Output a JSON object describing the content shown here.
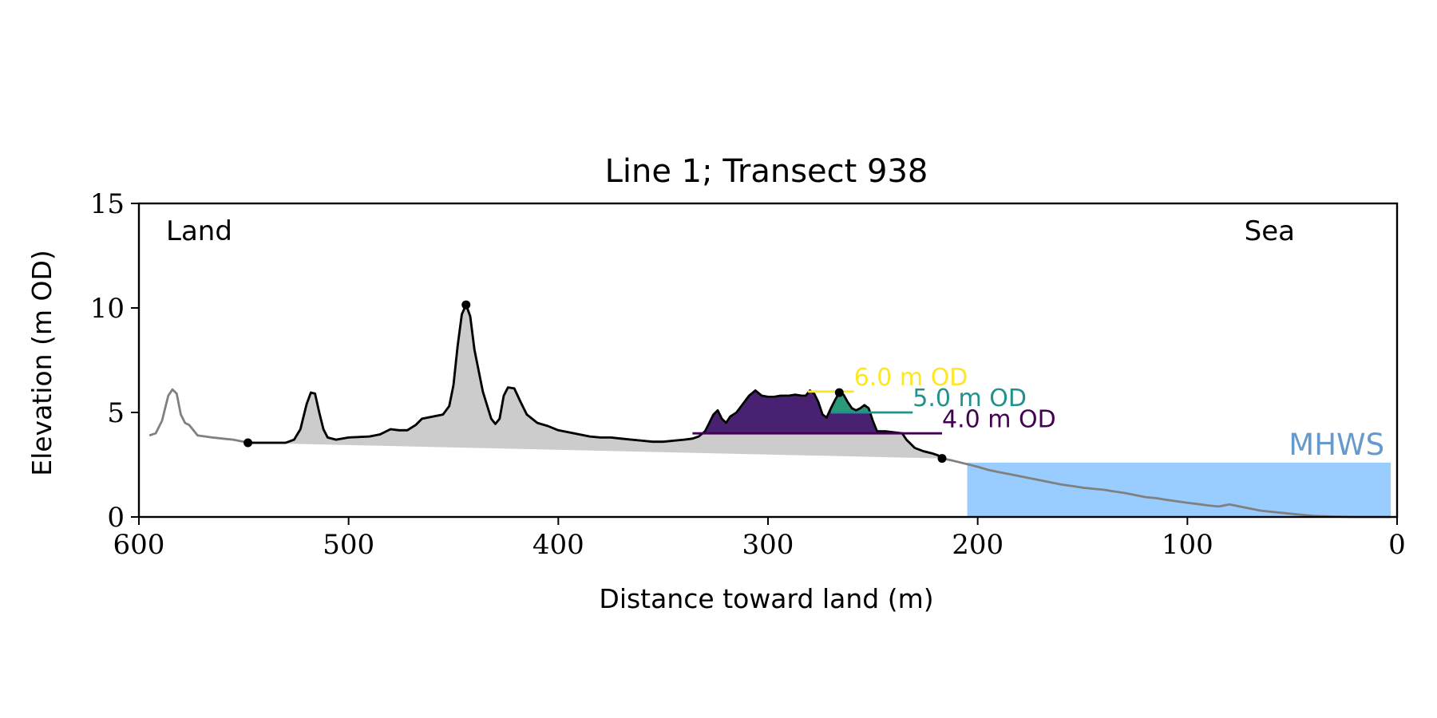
{
  "chart_data": {
    "type": "area",
    "title": "Line 1; Transect 938",
    "xlabel": "Distance toward land (m)",
    "ylabel": "Elevation (m OD)",
    "xlim": [
      600,
      0
    ],
    "ylim": [
      0,
      15
    ],
    "x_ticks": [
      600,
      500,
      400,
      300,
      200,
      100,
      0
    ],
    "y_ticks": [
      0,
      5,
      10,
      15
    ],
    "corner_labels": {
      "land": "Land",
      "sea": "Sea"
    },
    "grid": false,
    "mhws": {
      "label": "MHWS",
      "elevation": 2.6,
      "x_from": 205,
      "x_to": 3,
      "color": "#99ccff",
      "label_color": "#6699cc"
    },
    "profile_full": {
      "color": "#808080",
      "points": [
        [
          595,
          3.9
        ],
        [
          592,
          4.0
        ],
        [
          589,
          4.6
        ],
        [
          586,
          5.8
        ],
        [
          584,
          6.1
        ],
        [
          582,
          5.9
        ],
        [
          580,
          4.9
        ],
        [
          578,
          4.5
        ],
        [
          576,
          4.4
        ],
        [
          572,
          3.9
        ],
        [
          565,
          3.8
        ],
        [
          560,
          3.75
        ],
        [
          555,
          3.7
        ],
        [
          550,
          3.6
        ],
        [
          548,
          3.55
        ],
        [
          540,
          3.55
        ],
        [
          530,
          3.55
        ],
        [
          526,
          3.7
        ],
        [
          523,
          4.2
        ],
        [
          520,
          5.4
        ],
        [
          518,
          5.95
        ],
        [
          516,
          5.9
        ],
        [
          514,
          5.0
        ],
        [
          512,
          4.2
        ],
        [
          510,
          3.8
        ],
        [
          506,
          3.7
        ],
        [
          500,
          3.8
        ],
        [
          490,
          3.85
        ],
        [
          485,
          3.95
        ],
        [
          480,
          4.2
        ],
        [
          476,
          4.15
        ],
        [
          472,
          4.15
        ],
        [
          468,
          4.4
        ],
        [
          465,
          4.7
        ],
        [
          460,
          4.8
        ],
        [
          455,
          4.9
        ],
        [
          452,
          5.3
        ],
        [
          450,
          6.3
        ],
        [
          448,
          8.2
        ],
        [
          446,
          9.7
        ],
        [
          444,
          10.15
        ],
        [
          442,
          9.6
        ],
        [
          440,
          8.0
        ],
        [
          436,
          6.0
        ],
        [
          432,
          4.7
        ],
        [
          430,
          4.45
        ],
        [
          428,
          4.7
        ],
        [
          426,
          5.8
        ],
        [
          424,
          6.2
        ],
        [
          421,
          6.15
        ],
        [
          418,
          5.5
        ],
        [
          415,
          4.9
        ],
        [
          410,
          4.5
        ],
        [
          405,
          4.35
        ],
        [
          400,
          4.15
        ],
        [
          395,
          4.05
        ],
        [
          390,
          3.95
        ],
        [
          385,
          3.85
        ],
        [
          380,
          3.8
        ],
        [
          375,
          3.8
        ],
        [
          370,
          3.75
        ],
        [
          365,
          3.7
        ],
        [
          360,
          3.65
        ],
        [
          355,
          3.6
        ],
        [
          350,
          3.6
        ],
        [
          345,
          3.65
        ],
        [
          340,
          3.7
        ],
        [
          336,
          3.75
        ],
        [
          333,
          3.85
        ],
        [
          330,
          4.1
        ],
        [
          328,
          4.5
        ],
        [
          326,
          4.9
        ],
        [
          324,
          5.1
        ],
        [
          322,
          4.7
        ],
        [
          320,
          4.5
        ],
        [
          318,
          4.8
        ],
        [
          315,
          5.0
        ],
        [
          312,
          5.4
        ],
        [
          309,
          5.8
        ],
        [
          306,
          6.05
        ],
        [
          303,
          5.8
        ],
        [
          300,
          5.75
        ],
        [
          297,
          5.75
        ],
        [
          294,
          5.8
        ],
        [
          290,
          5.8
        ],
        [
          287,
          5.85
        ],
        [
          284,
          5.8
        ],
        [
          282,
          5.8
        ],
        [
          280,
          6.05
        ],
        [
          278,
          5.9
        ],
        [
          276,
          5.5
        ],
        [
          274,
          4.9
        ],
        [
          272,
          4.75
        ],
        [
          270,
          5.2
        ],
        [
          268,
          5.6
        ],
        [
          266,
          5.95
        ],
        [
          264,
          5.85
        ],
        [
          262,
          5.5
        ],
        [
          260,
          5.2
        ],
        [
          258,
          5.1
        ],
        [
          256,
          5.2
        ],
        [
          254,
          5.35
        ],
        [
          252,
          5.2
        ],
        [
          250,
          4.6
        ],
        [
          248,
          4.1
        ],
        [
          244,
          4.1
        ],
        [
          240,
          4.05
        ],
        [
          236,
          4.0
        ],
        [
          234,
          3.7
        ],
        [
          230,
          3.3
        ],
        [
          226,
          3.15
        ],
        [
          222,
          3.05
        ],
        [
          219,
          2.95
        ],
        [
          217,
          2.8
        ],
        [
          212,
          2.7
        ],
        [
          206,
          2.55
        ],
        [
          200,
          2.4
        ],
        [
          195,
          2.25
        ],
        [
          190,
          2.15
        ],
        [
          185,
          2.05
        ],
        [
          180,
          1.95
        ],
        [
          175,
          1.85
        ],
        [
          170,
          1.75
        ],
        [
          165,
          1.65
        ],
        [
          160,
          1.55
        ],
        [
          155,
          1.48
        ],
        [
          150,
          1.4
        ],
        [
          145,
          1.35
        ],
        [
          140,
          1.3
        ],
        [
          135,
          1.22
        ],
        [
          130,
          1.15
        ],
        [
          125,
          1.05
        ],
        [
          120,
          0.95
        ],
        [
          115,
          0.9
        ],
        [
          110,
          0.82
        ],
        [
          105,
          0.75
        ],
        [
          100,
          0.68
        ],
        [
          95,
          0.62
        ],
        [
          90,
          0.55
        ],
        [
          85,
          0.5
        ],
        [
          80,
          0.6
        ],
        [
          75,
          0.5
        ],
        [
          70,
          0.4
        ],
        [
          65,
          0.3
        ],
        [
          60,
          0.25
        ],
        [
          55,
          0.2
        ],
        [
          50,
          0.15
        ],
        [
          45,
          0.1
        ],
        [
          40,
          0.05
        ],
        [
          30,
          0.02
        ],
        [
          20,
          0.0
        ],
        [
          10,
          0.0
        ],
        [
          3,
          0.0
        ]
      ]
    },
    "dune_segment": {
      "x_from": 548,
      "x_to": 217,
      "color": "#000000",
      "fill": "#cccccc"
    },
    "markers": [
      {
        "x": 548,
        "y": 3.55
      },
      {
        "x": 444,
        "y": 10.15
      },
      {
        "x": 266,
        "y": 5.95
      },
      {
        "x": 217,
        "y": 2.8
      }
    ],
    "volume_levels": [
      {
        "label": "4.0 m OD",
        "level": 4.0,
        "color": "#440154",
        "fill": "#482173",
        "line_x_from": 336,
        "line_x_to": 217,
        "text_x": 217,
        "text_y": 4.3
      },
      {
        "label": "5.0 m OD",
        "level": 5.0,
        "color": "#21918c",
        "fill": "#2a9a7a",
        "line_x_from": 270,
        "line_x_to": 231,
        "text_x": 231,
        "text_y": 5.3
      },
      {
        "label": "6.0 m OD",
        "level": 6.0,
        "color": "#fde725",
        "fill": "#fde725",
        "line_x_from": 281,
        "line_x_to": 259,
        "text_x": 259,
        "text_y": 6.3
      }
    ]
  }
}
